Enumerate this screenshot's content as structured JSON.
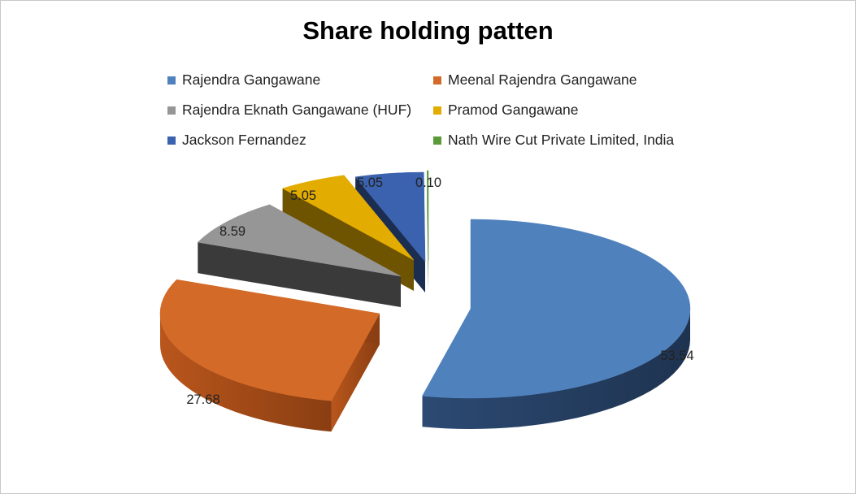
{
  "chart_data": {
    "type": "pie",
    "title": "Share holding patten",
    "categories": [
      "Rajendra Gangawane",
      "Meenal Rajendra Gangawane",
      "Rajendra Eknath Gangawane (HUF)",
      "Pramod Gangawane",
      "Jackson Fernandez",
      "Nath Wire Cut Private Limited, India"
    ],
    "values": [
      53.54,
      27.68,
      8.59,
      5.05,
      5.05,
      0.1
    ],
    "value_labels": [
      "53.54",
      "27.68",
      "8.59",
      "5.05",
      "5.05",
      "0.10"
    ],
    "colors": [
      "#4f81bd",
      "#d46a28",
      "#969696",
      "#e3ac00",
      "#3b62ae",
      "#5a9a3a"
    ],
    "legend_position": "top",
    "style": "3d-exploded"
  }
}
